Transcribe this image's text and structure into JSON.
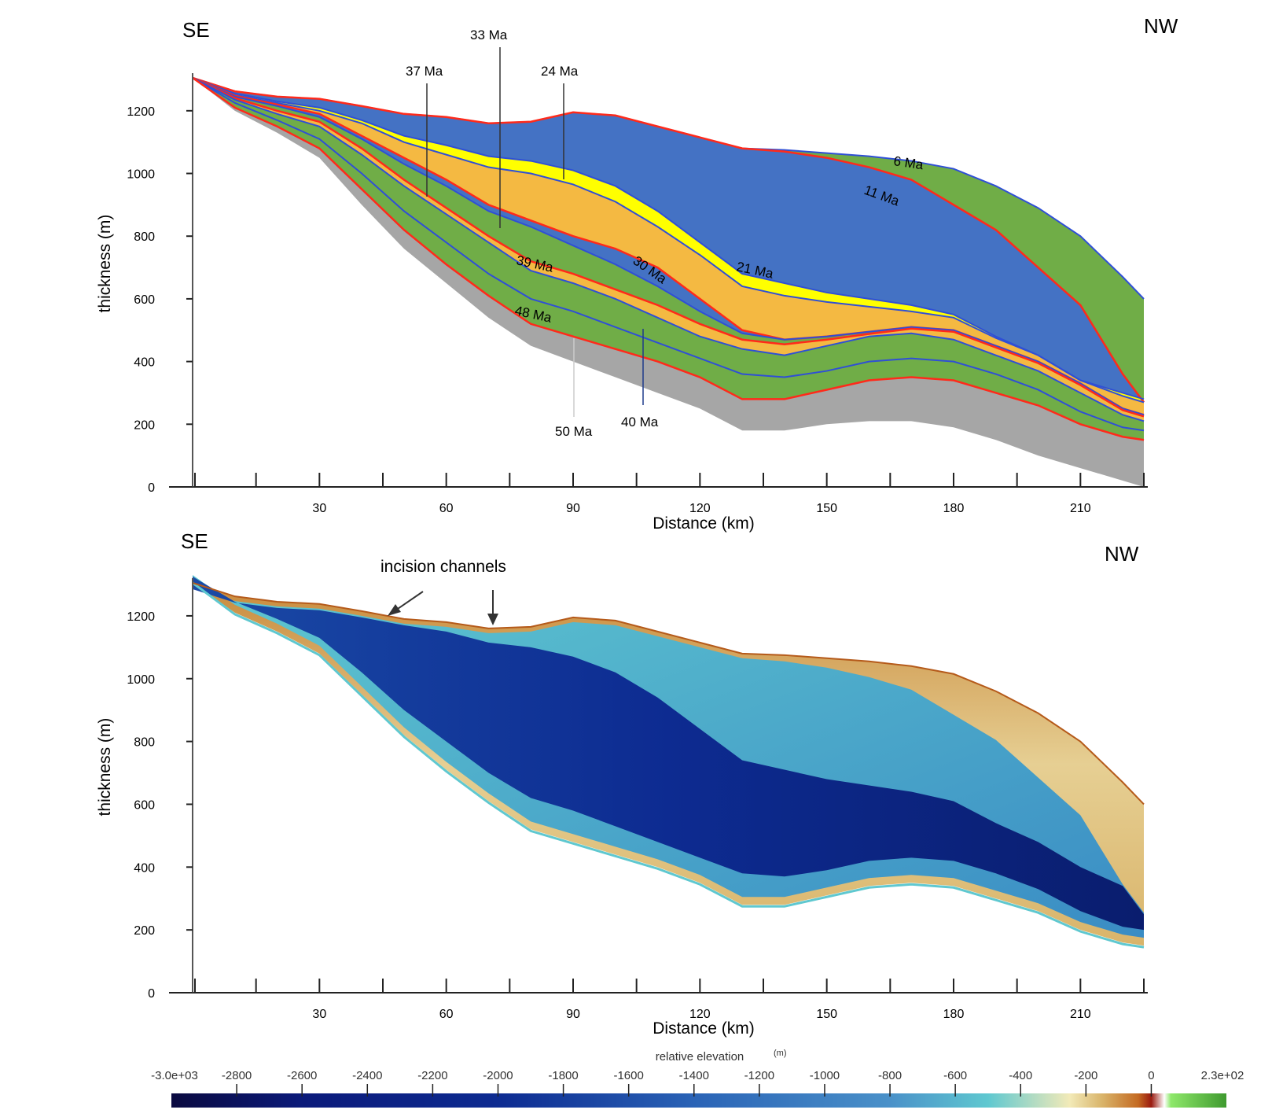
{
  "chart_data": [
    {
      "type": "area",
      "title": "",
      "direction_left": "SE",
      "direction_right": "NW",
      "xlabel": "Distance (km)",
      "ylabel": "thickness (m)",
      "xticks": [
        30,
        60,
        90,
        120,
        150,
        180,
        210
      ],
      "yticks": [
        0,
        200,
        400,
        600,
        800,
        1000,
        1200
      ],
      "xlim": [
        0,
        225
      ],
      "ylim": [
        0,
        1320
      ],
      "layer_colors": {
        "basement": "#a6a6a6",
        "green": "#70ad47",
        "blue": "#4472c4",
        "orange": "#f4b942",
        "yellow": "#ffff00",
        "red_line": "#ff2a1a",
        "blue_line": "#2f4fd6"
      },
      "surfaces": {
        "x": [
          0,
          10,
          20,
          30,
          40,
          50,
          60,
          70,
          80,
          90,
          100,
          110,
          120,
          130,
          140,
          150,
          160,
          170,
          180,
          190,
          200,
          210,
          220,
          225
        ],
        "top_6Ma": [
          1305,
          1262,
          1245,
          1238,
          1215,
          1190,
          1180,
          1160,
          1165,
          1195,
          1185,
          1150,
          1115,
          1080,
          1075,
          1065,
          1055,
          1040,
          1015,
          960,
          890,
          800,
          670,
          600
        ],
        "s_11Ma": [
          1305,
          1262,
          1245,
          1238,
          1215,
          1190,
          1180,
          1160,
          1165,
          1195,
          1185,
          1150,
          1115,
          1080,
          1070,
          1050,
          1020,
          980,
          900,
          820,
          700,
          580,
          360,
          270
        ],
        "s_21Ma": [
          1305,
          1255,
          1230,
          1210,
          1170,
          1120,
          1090,
          1055,
          1040,
          1010,
          960,
          880,
          780,
          680,
          650,
          620,
          600,
          580,
          550,
          480,
          420,
          340,
          300,
          280
        ],
        "s_24Ma": [
          1305,
          1250,
          1225,
          1200,
          1160,
          1100,
          1060,
          1020,
          1000,
          965,
          910,
          830,
          740,
          640,
          610,
          590,
          575,
          560,
          540,
          475,
          420,
          340,
          290,
          270
        ],
        "s_30Ma": [
          1305,
          1248,
          1220,
          1190,
          1120,
          1050,
          980,
          900,
          850,
          800,
          760,
          700,
          600,
          500,
          470,
          480,
          495,
          510,
          500,
          450,
          400,
          330,
          250,
          230
        ],
        "s_33Ma": [
          1305,
          1245,
          1215,
          1180,
          1110,
          1030,
          960,
          880,
          830,
          770,
          710,
          640,
          560,
          490,
          470,
          480,
          495,
          510,
          500,
          450,
          400,
          330,
          250,
          230
        ],
        "s_37Ma": [
          1305,
          1240,
          1200,
          1165,
          1080,
          980,
          890,
          800,
          720,
          680,
          630,
          580,
          520,
          470,
          455,
          470,
          488,
          505,
          495,
          445,
          395,
          325,
          245,
          225
        ],
        "s_40Ma": [
          1305,
          1235,
          1190,
          1150,
          1060,
          960,
          870,
          780,
          690,
          650,
          600,
          540,
          480,
          440,
          420,
          450,
          480,
          490,
          470,
          420,
          370,
          300,
          230,
          210
        ],
        "s_48Ma": [
          1305,
          1225,
          1170,
          1110,
          1000,
          880,
          780,
          680,
          600,
          560,
          510,
          460,
          410,
          360,
          350,
          370,
          400,
          410,
          400,
          360,
          310,
          240,
          190,
          180
        ],
        "s_50Ma": [
          1305,
          1210,
          1150,
          1080,
          950,
          820,
          710,
          610,
          520,
          480,
          440,
          400,
          350,
          280,
          280,
          310,
          340,
          350,
          340,
          300,
          260,
          200,
          160,
          150
        ],
        "base": [
          1305,
          1200,
          1130,
          1050,
          900,
          760,
          650,
          540,
          450,
          400,
          350,
          300,
          250,
          180,
          180,
          200,
          210,
          210,
          190,
          150,
          100,
          60,
          20,
          0
        ]
      },
      "annotations": [
        "6 Ma",
        "11 Ma",
        "21 Ma",
        "24 Ma",
        "30 Ma",
        "33 Ma",
        "37 Ma",
        "39 Ma",
        "40 Ma",
        "48 Ma",
        "50 Ma"
      ]
    },
    {
      "type": "heatmap",
      "title": "",
      "direction_left": "SE",
      "direction_right": "NW",
      "xlabel": "Distance (km)",
      "ylabel": "thickness (m)",
      "xticks": [
        30,
        60,
        90,
        120,
        150,
        180,
        210
      ],
      "yticks": [
        0,
        200,
        400,
        600,
        800,
        1000,
        1200
      ],
      "xlim": [
        0,
        225
      ],
      "ylim": [
        0,
        1320
      ],
      "annotation": "incision channels",
      "colorbar": {
        "label": "relative elevation",
        "unit": "(m)",
        "min_label": "-3.0e+03",
        "max_label": "2.3e+02",
        "min": -3000,
        "max": 230,
        "ticks": [
          "-2800",
          "-2600",
          "-2400",
          "-2200",
          "-2000",
          "-1800",
          "-1600",
          "-1400",
          "-1200",
          "-1000",
          "-800",
          "-600",
          "-400",
          "-200",
          "0"
        ],
        "tick_values": [
          -2800,
          -2600,
          -2400,
          -2200,
          -2000,
          -1800,
          -1600,
          -1400,
          -1200,
          -1000,
          -800,
          -600,
          -400,
          -200,
          0
        ],
        "stops": [
          {
            "v": -3000,
            "c": "#0a0a40"
          },
          {
            "v": -2600,
            "c": "#0b1a7a"
          },
          {
            "v": -2000,
            "c": "#0d2b91"
          },
          {
            "v": -1400,
            "c": "#2a63b6"
          },
          {
            "v": -800,
            "c": "#4a91c9"
          },
          {
            "v": -500,
            "c": "#5fc8d0"
          },
          {
            "v": -250,
            "c": "#f2eab8"
          },
          {
            "v": -150,
            "c": "#d9b46a"
          },
          {
            "v": -40,
            "c": "#c46a22"
          },
          {
            "v": 0,
            "c": "#9a1a10"
          },
          {
            "v": 40,
            "c": "#ffffff"
          },
          {
            "v": 60,
            "c": "#8ee86a"
          },
          {
            "v": 230,
            "c": "#3f9a2f"
          }
        ]
      }
    }
  ]
}
